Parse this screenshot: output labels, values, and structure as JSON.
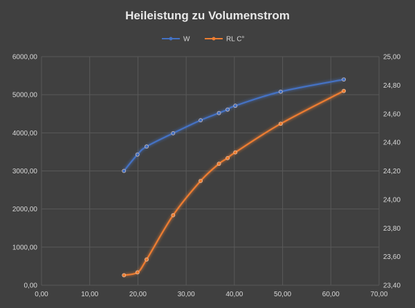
{
  "chart_data": {
    "type": "line",
    "title": "Heileistung zu Volumenstrom",
    "xlabel": "",
    "ylabel": "",
    "y2label": "",
    "xlim": [
      0,
      70
    ],
    "ylim": [
      0,
      6000
    ],
    "y2lim": [
      23.4,
      25.0
    ],
    "x_ticks": [
      "0,00",
      "10,00",
      "20,00",
      "30,00",
      "40,00",
      "50,00",
      "60,00",
      "70,00"
    ],
    "y_ticks": [
      "0,00",
      "1000,00",
      "2000,00",
      "3000,00",
      "4000,00",
      "5000,00",
      "6000,00"
    ],
    "y2_ticks": [
      "23,40",
      "23,60",
      "23,80",
      "24,00",
      "24,20",
      "24,40",
      "24,60",
      "24,80",
      "25,00"
    ],
    "grid": true,
    "legend_position": "top",
    "colors": {
      "W": "#4472c4",
      "RL C°": "#ed7d31",
      "background": "#404040",
      "grid": "#595959",
      "text": "#d9d9d9"
    },
    "series": [
      {
        "name": "W",
        "axis": "left",
        "x": [
          17.1,
          19.9,
          21.8,
          27.3,
          33.0,
          36.8,
          38.6,
          40.2,
          49.6,
          62.7
        ],
        "y": [
          3000,
          3430,
          3640,
          3990,
          4330,
          4520,
          4610,
          4710,
          5080,
          5400
        ]
      },
      {
        "name": "RL C°",
        "axis": "right",
        "x": [
          17.1,
          19.9,
          21.8,
          27.3,
          33.0,
          36.8,
          38.6,
          40.2,
          49.6,
          62.7
        ],
        "y": [
          23.47,
          23.49,
          23.58,
          23.89,
          24.13,
          24.25,
          24.29,
          24.33,
          24.53,
          24.76
        ]
      }
    ]
  }
}
